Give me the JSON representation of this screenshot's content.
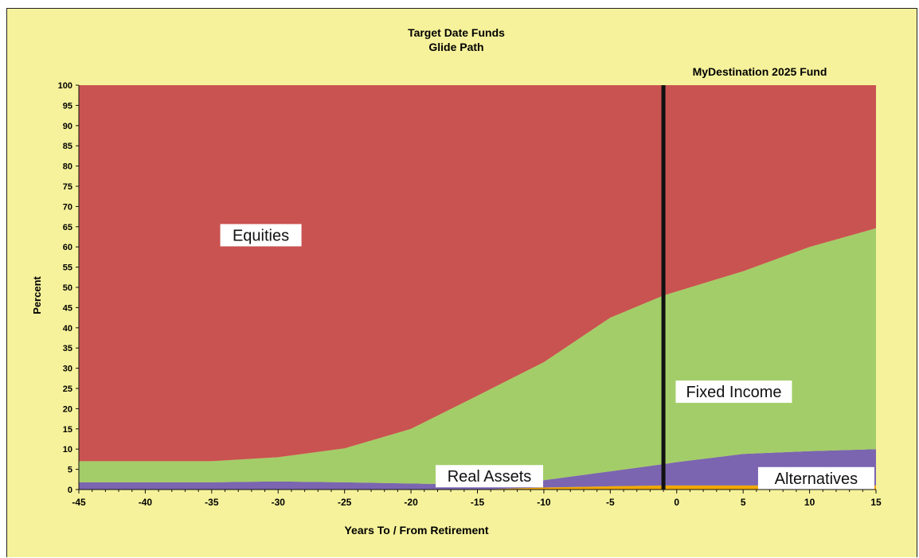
{
  "chart_data": {
    "type": "area",
    "title": "Target Date Funds",
    "subtitle": "Glide Path",
    "marker_label": "MyDestination 2025 Fund",
    "marker_x": -1,
    "xlabel": "Years To / From Retirement",
    "ylabel": "Percent",
    "xlim": [
      -45,
      15
    ],
    "ylim": [
      0,
      100
    ],
    "x_ticks": [
      -45,
      -40,
      -35,
      -30,
      -25,
      -20,
      -15,
      -10,
      -5,
      0,
      5,
      10,
      15
    ],
    "y_ticks": [
      0,
      5,
      10,
      15,
      20,
      25,
      30,
      35,
      40,
      45,
      50,
      55,
      60,
      65,
      70,
      75,
      80,
      85,
      90,
      95,
      100
    ],
    "x": [
      -45,
      -40,
      -35,
      -30,
      -25,
      -20,
      -15,
      -10,
      -5,
      -1,
      0,
      5,
      10,
      15
    ],
    "series": [
      {
        "name": "Alternatives",
        "color": "#f0a800",
        "values": [
          0,
          0,
          0,
          0,
          0,
          0,
          0,
          0.5,
          0.8,
          1,
          1,
          1,
          1,
          1
        ]
      },
      {
        "name": "Real Assets",
        "color": "#7b65b0",
        "values": [
          1.8,
          1.8,
          1.8,
          2,
          1.8,
          1.5,
          1.2,
          1.8,
          3.7,
          5.3,
          5.8,
          7.8,
          8.5,
          9
        ]
      },
      {
        "name": "Fixed Income",
        "color": "#a3cd69",
        "values": [
          5.2,
          5.2,
          5.2,
          6,
          8.4,
          13.5,
          22,
          29.2,
          38,
          41.7,
          42.2,
          45.2,
          50.5,
          54.6
        ]
      },
      {
        "name": "Equities",
        "color": "#c95351",
        "values": [
          93,
          93,
          93,
          92,
          89.8,
          85,
          76.8,
          68.5,
          57.5,
          52,
          51,
          46,
          40,
          35.4
        ]
      }
    ],
    "series_labels": [
      {
        "text": "Equities",
        "x": -31.3,
        "y": 62.9
      },
      {
        "text": "Fixed Income",
        "x": 4.3,
        "y": 24.2
      },
      {
        "text": "Real Assets",
        "x": -14.1,
        "y": 3.3
      },
      {
        "text": "Alternatives",
        "x": 10.5,
        "y": 2.8
      }
    ],
    "legend": "none",
    "grid": false
  }
}
